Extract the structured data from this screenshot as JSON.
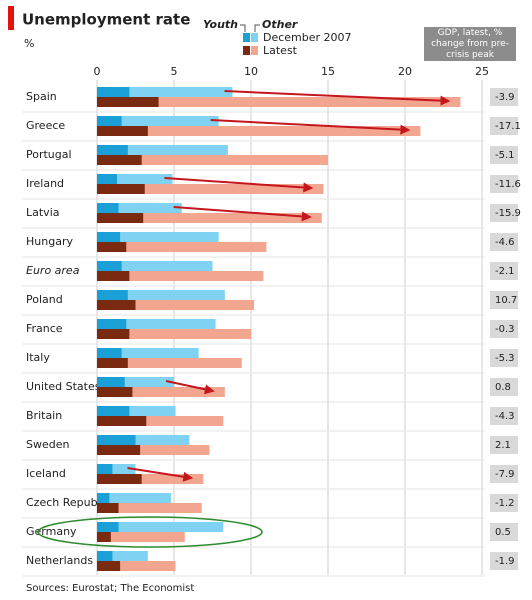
{
  "chart_data": {
    "type": "bar",
    "title": "Unemployment rate",
    "unit": "%",
    "source": "Sources: Eurostat; The Economist",
    "gdp_title": "GDP, latest, % change from pre-crisis peak",
    "group_labels": [
      "Youth",
      "Other"
    ],
    "categories": [
      "Spain",
      "Greece",
      "Portugal",
      "Ireland",
      "Latvia",
      "Hungary",
      "Euro area",
      "Poland",
      "France",
      "Italy",
      "United States",
      "Britain",
      "Sweden",
      "Iceland",
      "Czech Republic",
      "Germany",
      "Netherlands"
    ],
    "series": [
      {
        "name": "December 2007",
        "youth_color": "#7fd2f2",
        "other_color": "#1a9fd6",
        "youth": [
          8.8,
          7.9,
          8.5,
          4.9,
          5.5,
          7.9,
          7.5,
          8.3,
          7.7,
          6.6,
          5.0,
          5.1,
          6.0,
          2.5,
          4.8,
          8.2,
          3.3
        ],
        "other": [
          2.1,
          1.6,
          2.0,
          1.3,
          1.4,
          1.5,
          1.6,
          2.0,
          1.9,
          1.6,
          1.8,
          2.1,
          2.5,
          1.0,
          0.8,
          1.4,
          1.0
        ]
      },
      {
        "name": "Latest",
        "youth_color": "#f2a68f",
        "other_color": "#7a2a10",
        "youth": [
          23.6,
          21.0,
          15.0,
          14.7,
          14.6,
          11.0,
          10.8,
          10.2,
          10.0,
          9.4,
          8.3,
          8.2,
          7.3,
          6.9,
          6.8,
          5.7,
          5.1
        ],
        "other": [
          4.0,
          3.3,
          2.9,
          3.1,
          3.0,
          1.9,
          2.1,
          2.5,
          2.1,
          2.0,
          2.3,
          3.2,
          2.8,
          2.9,
          1.4,
          0.9,
          1.5
        ]
      }
    ],
    "gdp": [
      -3.9,
      -17.1,
      -5.1,
      -11.6,
      -15.9,
      -4.6,
      -2.1,
      10.7,
      -0.3,
      -5.3,
      0.8,
      -4.3,
      2.1,
      -7.9,
      -1.2,
      0.5,
      -1.9
    ],
    "xlim": [
      0,
      25
    ],
    "xticks": [
      0,
      5,
      10,
      15,
      20,
      25
    ],
    "grid": true
  }
}
